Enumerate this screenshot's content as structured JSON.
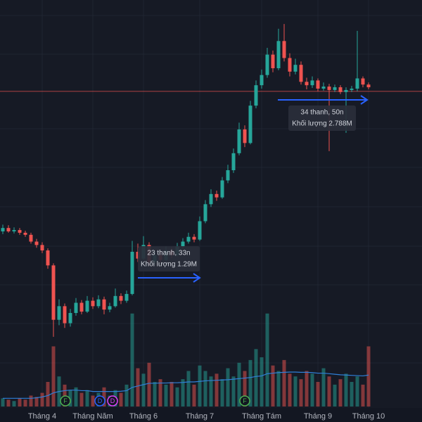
{
  "chart_data": {
    "type": "candlestick",
    "categories": [
      null,
      null,
      null,
      null,
      null,
      null,
      null,
      "Tháng 4",
      null,
      null,
      null,
      null,
      null,
      null,
      null,
      null,
      "Tháng Năm",
      null,
      null,
      null,
      null,
      null,
      null,
      null,
      null,
      "Tháng 6",
      null,
      null,
      null,
      null,
      null,
      null,
      null,
      null,
      null,
      "Tháng 7",
      null,
      null,
      null,
      null,
      null,
      null,
      null,
      null,
      null,
      null,
      "Tháng Tám",
      null,
      null,
      null,
      null,
      null,
      null,
      null,
      null,
      null,
      "Tháng 9",
      null,
      null,
      null,
      null,
      null,
      null,
      null,
      null,
      "Tháng 10"
    ],
    "open": [
      27,
      27.5,
      27,
      27.2,
      26.8,
      26.5,
      25.5,
      25,
      24.2,
      22,
      14,
      16,
      13.5,
      15,
      16.5,
      15.2,
      16.8,
      16,
      17,
      15.5,
      16,
      17.5,
      16.8,
      17.8,
      24,
      23,
      25,
      22.5,
      23.5,
      22.8,
      24.2,
      23.5,
      24.8,
      25.5,
      26.2,
      25.8,
      28.5,
      31,
      32.5,
      32,
      34.5,
      36,
      38.5,
      42,
      40,
      45.5,
      48.5,
      50,
      53,
      51,
      55,
      52.5,
      50.5,
      51.5,
      49,
      48.5,
      49.2,
      48,
      48.3,
      47.8,
      48.2,
      47.5,
      47.8,
      48,
      49.5,
      48.6
    ],
    "high": [
      28,
      27.9,
      27.6,
      27.5,
      27.1,
      26.8,
      25.9,
      25.4,
      24.5,
      22.3,
      17,
      16.4,
      15.6,
      17.2,
      16.9,
      17.5,
      17.3,
      17.6,
      17.4,
      16.5,
      18.6,
      17.9,
      18.3,
      25.6,
      25.2,
      26.3,
      25.4,
      24.1,
      24,
      24.8,
      24.6,
      25.3,
      26,
      26.8,
      26.6,
      29.2,
      31.6,
      33.2,
      33,
      35,
      36.8,
      39.2,
      43,
      42.6,
      46.2,
      49.2,
      50.8,
      54,
      53.6,
      56.8,
      57.5,
      53.2,
      52.4,
      52,
      49.6,
      49.8,
      49.5,
      48.9,
      48.7,
      48.6,
      48.5,
      48.2,
      48.4,
      56.5,
      49.8,
      48.9
    ],
    "low": [
      26.6,
      26.8,
      26.7,
      26.5,
      26.2,
      25.2,
      24.6,
      23.8,
      21.5,
      11.5,
      13.2,
      12.8,
      13,
      14.6,
      14.8,
      15,
      15.6,
      15.7,
      14.8,
      15.1,
      15.8,
      16.3,
      16.5,
      17.6,
      22.5,
      22.8,
      22,
      22.2,
      22.4,
      22.6,
      23.1,
      23.3,
      24.5,
      25.2,
      25.4,
      25.6,
      28.2,
      30.6,
      31.5,
      31.8,
      34.1,
      35.6,
      38.2,
      39.4,
      39.8,
      45.1,
      48,
      49.6,
      50.4,
      50.7,
      52,
      49.8,
      50.1,
      48.6,
      47.9,
      48.1,
      47.6,
      47.7,
      38.8,
      47.5,
      47.2,
      41.5,
      47.5,
      47.6,
      48.2,
      47.9
    ],
    "close": [
      27.5,
      27,
      27.2,
      26.8,
      26.5,
      25.5,
      25,
      24.2,
      22,
      14,
      16,
      13.5,
      15,
      16.5,
      15.2,
      16.8,
      16,
      17,
      15.5,
      16,
      17.5,
      16.8,
      17.8,
      24,
      23,
      25,
      22.5,
      23.5,
      22.8,
      24.2,
      23.5,
      24.8,
      25.5,
      26.2,
      25.8,
      28.5,
      31,
      32.5,
      32,
      34.5,
      36,
      38.5,
      42,
      40,
      45.5,
      48.5,
      50,
      53,
      51,
      55,
      52.5,
      50.5,
      51.5,
      49,
      48.5,
      49.2,
      48,
      48.3,
      47.8,
      48.2,
      47.5,
      47.8,
      48,
      49.5,
      48.6,
      48.2
    ],
    "volume": [
      0.3,
      0.25,
      0.2,
      0.3,
      0.25,
      0.4,
      0.35,
      0.5,
      0.9,
      2.2,
      1.1,
      0.8,
      0.6,
      0.7,
      0.5,
      0.6,
      0.4,
      0.5,
      0.7,
      0.4,
      0.6,
      0.5,
      0.8,
      3.4,
      1.4,
      1.2,
      1.6,
      0.9,
      1.0,
      0.8,
      0.9,
      0.7,
      1.0,
      1.3,
      0.8,
      1.5,
      1.3,
      1.1,
      1.2,
      1.0,
      1.4,
      1.1,
      1.6,
      1.3,
      1.7,
      2.1,
      1.8,
      3.4,
      1.5,
      1.3,
      1.7,
      1.2,
      1.1,
      1.0,
      1.3,
      1.2,
      0.9,
      1.4,
      1.1,
      0.8,
      1.0,
      1.2,
      0.9,
      1.1,
      0.8,
      2.2
    ],
    "volume_ma": [
      0.3,
      0.3,
      0.3,
      0.3,
      0.3,
      0.3,
      0.32,
      0.35,
      0.4,
      0.5,
      0.55,
      0.58,
      0.6,
      0.6,
      0.58,
      0.58,
      0.55,
      0.55,
      0.55,
      0.55,
      0.55,
      0.56,
      0.58,
      0.7,
      0.75,
      0.8,
      0.85,
      0.85,
      0.86,
      0.86,
      0.87,
      0.87,
      0.88,
      0.9,
      0.9,
      0.92,
      0.94,
      0.95,
      0.96,
      0.97,
      0.98,
      1.0,
      1.02,
      1.04,
      1.06,
      1.1,
      1.12,
      1.2,
      1.22,
      1.24,
      1.25,
      1.26,
      1.26,
      1.25,
      1.25,
      1.24,
      1.22,
      1.22,
      1.2,
      1.18,
      1.16,
      1.15,
      1.14,
      1.13,
      1.12,
      1.15
    ],
    "up_color": "#26a69a",
    "down_color": "#ef5350",
    "ma_color": "#2f7fd8",
    "ylim": [
      0,
      60
    ],
    "vlim": [
      0,
      3.6
    ],
    "price_line": 47.6,
    "annotations": [
      {
        "bars": "23 thanh, 33n",
        "volume": "Khối lượng 1.29M"
      },
      {
        "bars": "34 thanh, 50n",
        "volume": "Khối lượng 2.788M"
      }
    ],
    "events": [
      {
        "label": "F",
        "color": "#4caf50"
      },
      {
        "label": "D",
        "color": "#2962ff"
      },
      {
        "label": "D",
        "color": "#e040fb"
      },
      {
        "label": "F",
        "color": "#4caf50"
      }
    ]
  }
}
